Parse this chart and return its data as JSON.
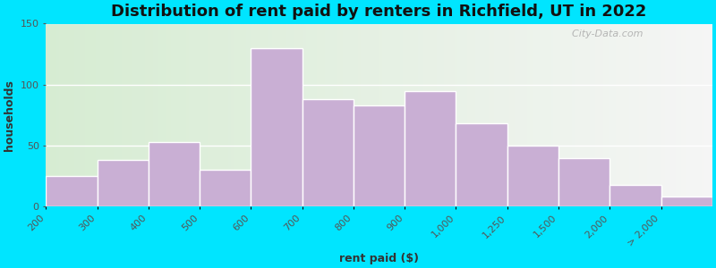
{
  "title": "Distribution of rent paid by renters in Richfield, UT in 2022",
  "xlabel": "rent paid ($)",
  "ylabel": "households",
  "bar_color": "#c9afd4",
  "bar_edgecolor": "#ffffff",
  "categories": [
    "200",
    "300",
    "400",
    "500",
    "600",
    "700",
    "800",
    "900",
    "1,000",
    "1,250",
    "1,500",
    "2,000",
    "> 2,000"
  ],
  "values": [
    25,
    38,
    53,
    30,
    130,
    88,
    83,
    95,
    68,
    50,
    40,
    18,
    8
  ],
  "ylim": [
    0,
    150
  ],
  "yticks": [
    0,
    50,
    100,
    150
  ],
  "background_outer": "#00e5ff",
  "background_inner_left": "#d6ecd2",
  "background_inner_right": "#f0f0f0",
  "title_fontsize": 13,
  "axis_label_fontsize": 9,
  "tick_fontsize": 8,
  "watermark": "  City-Data.com"
}
